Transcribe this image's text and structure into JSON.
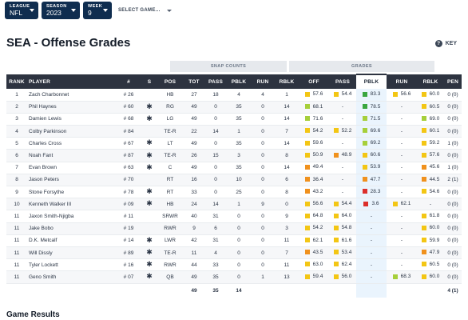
{
  "filters": {
    "league": {
      "label": "LEAGUE",
      "value": "NFL"
    },
    "season": {
      "label": "SEASON",
      "value": "2023"
    },
    "week": {
      "label": "WEEK",
      "value": "9"
    },
    "game": {
      "label": "SELECT GAME..."
    }
  },
  "page_title": "SEA - Offense Grades",
  "key_label": "KEY",
  "key_icon": "?",
  "group_headers": {
    "snap_counts": "SNAP COUNTS",
    "grades": "GRADES"
  },
  "columns": [
    "RANK",
    "PLAYER",
    "#",
    "S",
    "POS",
    "TOT",
    "PASS",
    "PBLK",
    "RUN",
    "RBLK",
    "OFF",
    "PASS",
    "PBLK",
    "RUN",
    "RBLK",
    "PEN"
  ],
  "colors": {
    "green": "#3aa63f",
    "lime": "#a6cf3a",
    "yellow": "#f3c614",
    "orange": "#f0911d",
    "red": "#dc2f2b",
    "header": "#2d3340",
    "filter": "#0f2d4f"
  },
  "rows": [
    {
      "rank": "1",
      "player": "Zach Charbonnet",
      "num": "# 26",
      "star": "",
      "pos": "HB",
      "tot": "27",
      "pass": "18",
      "pblk": "4",
      "run": "4",
      "rblk": "1",
      "g_off": "57.6",
      "g_pass": "54.4",
      "g_pblk": "83.3",
      "g_run": "56.6",
      "g_rblk": "60.0",
      "pen": "0 (0)",
      "c_off": "yellow",
      "c_pass": "yellow",
      "c_pblk": "green",
      "c_run": "yellow",
      "c_rblk": "yellow"
    },
    {
      "rank": "2",
      "player": "Phil Haynes",
      "num": "# 60",
      "star": "✱",
      "pos": "RG",
      "tot": "49",
      "pass": "0",
      "pblk": "35",
      "run": "0",
      "rblk": "14",
      "g_off": "68.1",
      "g_pass": "-",
      "g_pblk": "78.5",
      "g_run": "-",
      "g_rblk": "60.5",
      "pen": "0 (0)",
      "c_off": "lime",
      "c_pass": "",
      "c_pblk": "green",
      "c_run": "",
      "c_rblk": "yellow"
    },
    {
      "rank": "3",
      "player": "Damien Lewis",
      "num": "# 68",
      "star": "✱",
      "pos": "LG",
      "tot": "49",
      "pass": "0",
      "pblk": "35",
      "run": "0",
      "rblk": "14",
      "g_off": "71.6",
      "g_pass": "-",
      "g_pblk": "71.5",
      "g_run": "-",
      "g_rblk": "69.0",
      "pen": "0 (0)",
      "c_off": "lime",
      "c_pass": "",
      "c_pblk": "lime",
      "c_run": "",
      "c_rblk": "lime"
    },
    {
      "rank": "4",
      "player": "Colby Parkinson",
      "num": "# 84",
      "star": "",
      "pos": "TE-R",
      "tot": "22",
      "pass": "14",
      "pblk": "1",
      "run": "0",
      "rblk": "7",
      "g_off": "54.2",
      "g_pass": "52.2",
      "g_pblk": "69.6",
      "g_run": "-",
      "g_rblk": "60.1",
      "pen": "0 (0)",
      "c_off": "yellow",
      "c_pass": "yellow",
      "c_pblk": "lime",
      "c_run": "",
      "c_rblk": "yellow"
    },
    {
      "rank": "5",
      "player": "Charles Cross",
      "num": "# 67",
      "star": "✱",
      "pos": "LT",
      "tot": "49",
      "pass": "0",
      "pblk": "35",
      "run": "0",
      "rblk": "14",
      "g_off": "59.6",
      "g_pass": "-",
      "g_pblk": "69.2",
      "g_run": "-",
      "g_rblk": "59.2",
      "pen": "1 (0)",
      "c_off": "yellow",
      "c_pass": "",
      "c_pblk": "lime",
      "c_run": "",
      "c_rblk": "yellow"
    },
    {
      "rank": "6",
      "player": "Noah Fant",
      "num": "# 87",
      "star": "✱",
      "pos": "TE-R",
      "tot": "26",
      "pass": "15",
      "pblk": "3",
      "run": "0",
      "rblk": "8",
      "g_off": "50.9",
      "g_pass": "48.9",
      "g_pblk": "60.6",
      "g_run": "-",
      "g_rblk": "57.6",
      "pen": "0 (0)",
      "c_off": "yellow",
      "c_pass": "orange",
      "c_pblk": "yellow",
      "c_run": "",
      "c_rblk": "yellow"
    },
    {
      "rank": "7",
      "player": "Evan Brown",
      "num": "# 63",
      "star": "✱",
      "pos": "C",
      "tot": "49",
      "pass": "0",
      "pblk": "35",
      "run": "0",
      "rblk": "14",
      "g_off": "49.4",
      "g_pass": "-",
      "g_pblk": "53.9",
      "g_run": "-",
      "g_rblk": "45.6",
      "pen": "1 (0)",
      "c_off": "orange",
      "c_pass": "",
      "c_pblk": "yellow",
      "c_run": "",
      "c_rblk": "orange"
    },
    {
      "rank": "8",
      "player": "Jason Peters",
      "num": "# 70",
      "star": "",
      "pos": "RT",
      "tot": "16",
      "pass": "0",
      "pblk": "10",
      "run": "0",
      "rblk": "6",
      "g_off": "36.4",
      "g_pass": "-",
      "g_pblk": "47.7",
      "g_run": "-",
      "g_rblk": "44.5",
      "pen": "2 (1)",
      "c_off": "orange",
      "c_pass": "",
      "c_pblk": "orange",
      "c_run": "",
      "c_rblk": "orange"
    },
    {
      "rank": "9",
      "player": "Stone Forsythe",
      "num": "# 78",
      "star": "✱",
      "pos": "RT",
      "tot": "33",
      "pass": "0",
      "pblk": "25",
      "run": "0",
      "rblk": "8",
      "g_off": "43.2",
      "g_pass": "-",
      "g_pblk": "28.3",
      "g_run": "-",
      "g_rblk": "54.6",
      "pen": "0 (0)",
      "c_off": "orange",
      "c_pass": "",
      "c_pblk": "red",
      "c_run": "",
      "c_rblk": "yellow"
    },
    {
      "rank": "10",
      "player": "Kenneth Walker III",
      "num": "# 09",
      "star": "✱",
      "pos": "HB",
      "tot": "24",
      "pass": "14",
      "pblk": "1",
      "run": "9",
      "rblk": "0",
      "g_off": "56.6",
      "g_pass": "54.4",
      "g_pblk": "3.6",
      "g_run": "62.1",
      "g_rblk": "-",
      "pen": "0 (0)",
      "c_off": "yellow",
      "c_pass": "yellow",
      "c_pblk": "red",
      "c_run": "yellow",
      "c_rblk": ""
    },
    {
      "rank": "11",
      "player": "Jaxon Smith-Njigba",
      "num": "# 11",
      "star": "",
      "pos": "SRWR",
      "tot": "40",
      "pass": "31",
      "pblk": "0",
      "run": "0",
      "rblk": "9",
      "g_off": "64.8",
      "g_pass": "64.0",
      "g_pblk": "-",
      "g_run": "-",
      "g_rblk": "61.8",
      "pen": "0 (0)",
      "c_off": "yellow",
      "c_pass": "yellow",
      "c_pblk": "",
      "c_run": "",
      "c_rblk": "yellow"
    },
    {
      "rank": "11",
      "player": "Jake Bobo",
      "num": "# 19",
      "star": "",
      "pos": "RWR",
      "tot": "9",
      "pass": "6",
      "pblk": "0",
      "run": "0",
      "rblk": "3",
      "g_off": "54.2",
      "g_pass": "54.8",
      "g_pblk": "-",
      "g_run": "-",
      "g_rblk": "60.0",
      "pen": "0 (0)",
      "c_off": "yellow",
      "c_pass": "yellow",
      "c_pblk": "",
      "c_run": "",
      "c_rblk": "yellow"
    },
    {
      "rank": "11",
      "player": "D.K. Metcalf",
      "num": "# 14",
      "star": "✱",
      "pos": "LWR",
      "tot": "42",
      "pass": "31",
      "pblk": "0",
      "run": "0",
      "rblk": "11",
      "g_off": "62.1",
      "g_pass": "61.6",
      "g_pblk": "-",
      "g_run": "-",
      "g_rblk": "59.9",
      "pen": "0 (0)",
      "c_off": "yellow",
      "c_pass": "yellow",
      "c_pblk": "",
      "c_run": "",
      "c_rblk": "yellow"
    },
    {
      "rank": "11",
      "player": "Will Dissly",
      "num": "# 89",
      "star": "✱",
      "pos": "TE-R",
      "tot": "11",
      "pass": "4",
      "pblk": "0",
      "run": "0",
      "rblk": "7",
      "g_off": "43.5",
      "g_pass": "53.4",
      "g_pblk": "-",
      "g_run": "-",
      "g_rblk": "47.9",
      "pen": "0 (0)",
      "c_off": "orange",
      "c_pass": "yellow",
      "c_pblk": "",
      "c_run": "",
      "c_rblk": "orange"
    },
    {
      "rank": "11",
      "player": "Tyler Lockett",
      "num": "# 16",
      "star": "✱",
      "pos": "RWR",
      "tot": "44",
      "pass": "33",
      "pblk": "0",
      "run": "0",
      "rblk": "11",
      "g_off": "63.0",
      "g_pass": "62.4",
      "g_pblk": "-",
      "g_run": "-",
      "g_rblk": "60.5",
      "pen": "0 (0)",
      "c_off": "yellow",
      "c_pass": "yellow",
      "c_pblk": "",
      "c_run": "",
      "c_rblk": "yellow"
    },
    {
      "rank": "11",
      "player": "Geno Smith",
      "num": "# 07",
      "star": "✱",
      "pos": "QB",
      "tot": "49",
      "pass": "35",
      "pblk": "0",
      "run": "1",
      "rblk": "13",
      "g_off": "59.4",
      "g_pass": "56.0",
      "g_pblk": "-",
      "g_run": "68.3",
      "g_rblk": "60.0",
      "pen": "0 (0)",
      "c_off": "yellow",
      "c_pass": "yellow",
      "c_pblk": "",
      "c_run": "lime",
      "c_rblk": "yellow"
    }
  ],
  "totals": {
    "tot": "49",
    "pass": "35",
    "pblk": "14",
    "pen": "4 (1)"
  },
  "section_title": "Game Results"
}
